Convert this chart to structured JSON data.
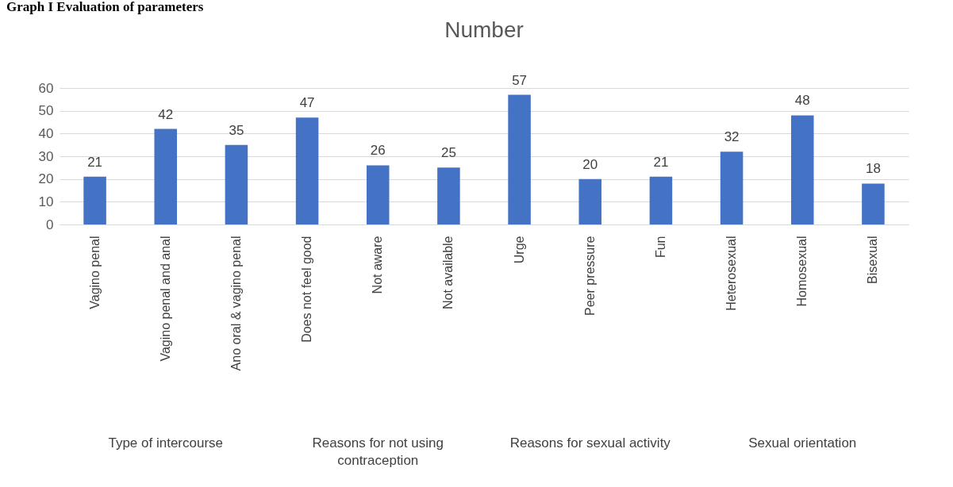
{
  "chart_data": {
    "type": "bar",
    "title": "Number",
    "categories": [
      "Vagino penal",
      "Vagino penal and anal",
      "Ano oral & vagino penal",
      "Does not feel good",
      "Not aware",
      "Not available",
      "Urge",
      "Peer pressure",
      "Fun",
      "Heterosexual",
      "Homosexual",
      "Bisexual"
    ],
    "values": [
      21,
      42,
      35,
      47,
      26,
      25,
      57,
      20,
      21,
      32,
      48,
      18
    ],
    "color": "#4472c4",
    "ylim": [
      0,
      60
    ],
    "yticks": [
      0,
      10,
      20,
      30,
      40,
      50,
      60
    ],
    "grid": "y",
    "data_labels": true,
    "annotations": [
      "Graph I Evaluation of parameters",
      "Type of intercourse",
      "Reasons for not using contraception",
      "Reasons for sexual activity",
      "Sexual orientation"
    ]
  }
}
